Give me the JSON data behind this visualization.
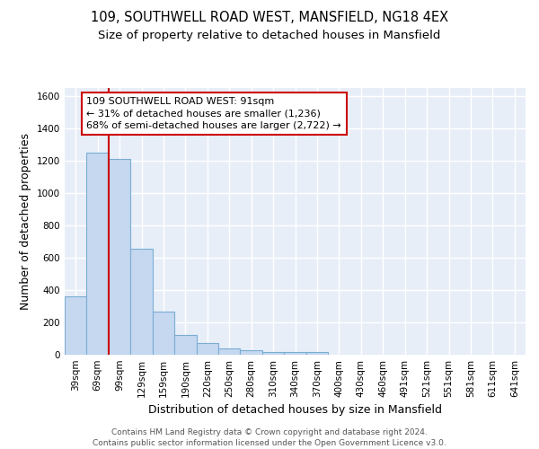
{
  "title_line1": "109, SOUTHWELL ROAD WEST, MANSFIELD, NG18 4EX",
  "title_line2": "Size of property relative to detached houses in Mansfield",
  "xlabel": "Distribution of detached houses by size in Mansfield",
  "ylabel": "Number of detached properties",
  "categories": [
    "39sqm",
    "69sqm",
    "99sqm",
    "129sqm",
    "159sqm",
    "190sqm",
    "220sqm",
    "250sqm",
    "280sqm",
    "310sqm",
    "340sqm",
    "370sqm",
    "400sqm",
    "430sqm",
    "460sqm",
    "491sqm",
    "521sqm",
    "551sqm",
    "581sqm",
    "611sqm",
    "641sqm"
  ],
  "values": [
    360,
    1250,
    1210,
    655,
    265,
    120,
    70,
    40,
    28,
    18,
    15,
    15,
    0,
    0,
    0,
    0,
    0,
    0,
    0,
    0,
    0
  ],
  "bar_color": "#c5d8f0",
  "bar_edge_color": "#7aadd4",
  "background_color": "#e8eef8",
  "grid_color": "#ffffff",
  "vline_color": "#cc0000",
  "vline_x": 2.0,
  "annotation_text": "109 SOUTHWELL ROAD WEST: 91sqm\n← 31% of detached houses are smaller (1,236)\n68% of semi-detached houses are larger (2,722) →",
  "annotation_box_facecolor": "#ffffff",
  "annotation_box_edgecolor": "#cc0000",
  "ylim": [
    0,
    1650
  ],
  "yticks": [
    0,
    200,
    400,
    600,
    800,
    1000,
    1200,
    1400,
    1600
  ],
  "footer_text": "Contains HM Land Registry data © Crown copyright and database right 2024.\nContains public sector information licensed under the Open Government Licence v3.0.",
  "title_fontsize": 10.5,
  "subtitle_fontsize": 9.5,
  "tick_fontsize": 7.5,
  "label_fontsize": 9,
  "footer_fontsize": 6.5
}
